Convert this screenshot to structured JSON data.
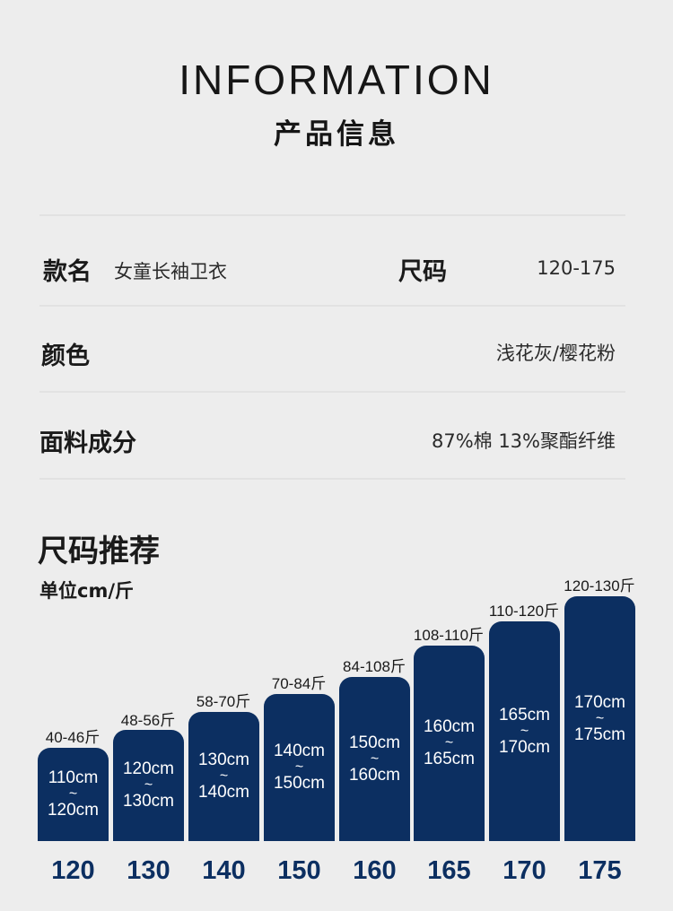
{
  "header": {
    "title_en": "INFORMATION",
    "title_cn": "产品信息"
  },
  "info": {
    "style_label": "款名",
    "style_value": "女童长袖卫衣",
    "size_label": "尺码",
    "size_value": "120-175",
    "color_label": "颜色",
    "color_value": "浅花灰/樱花粉",
    "fabric_label": "面料成分",
    "fabric_value": "87%棉 13%聚酯纤维"
  },
  "recommend": {
    "title": "尺码推荐",
    "unit": "单位cm/斤",
    "bar_color": "#0c2f61",
    "items": [
      {
        "size": "120",
        "height_from": "110cm",
        "tilde": "~",
        "height_to": "120cm",
        "weight": "40-46斤"
      },
      {
        "size": "130",
        "height_from": "120cm",
        "tilde": "~",
        "height_to": "130cm",
        "weight": "48-56斤"
      },
      {
        "size": "140",
        "height_from": "130cm",
        "tilde": "~",
        "height_to": "140cm",
        "weight": "58-70斤"
      },
      {
        "size": "150",
        "height_from": "140cm",
        "tilde": "~",
        "height_to": "150cm",
        "weight": "70-84斤"
      },
      {
        "size": "160",
        "height_from": "150cm",
        "tilde": "~",
        "height_to": "160cm",
        "weight": "84-108斤"
      },
      {
        "size": "165",
        "height_from": "160cm",
        "tilde": "~",
        "height_to": "165cm",
        "weight": "108-110斤"
      },
      {
        "size": "170",
        "height_from": "165cm",
        "tilde": "~",
        "height_to": "170cm",
        "weight": "110-120斤"
      },
      {
        "size": "175",
        "height_from": "170cm",
        "tilde": "~",
        "height_to": "175cm",
        "weight": "120-130斤"
      }
    ]
  }
}
